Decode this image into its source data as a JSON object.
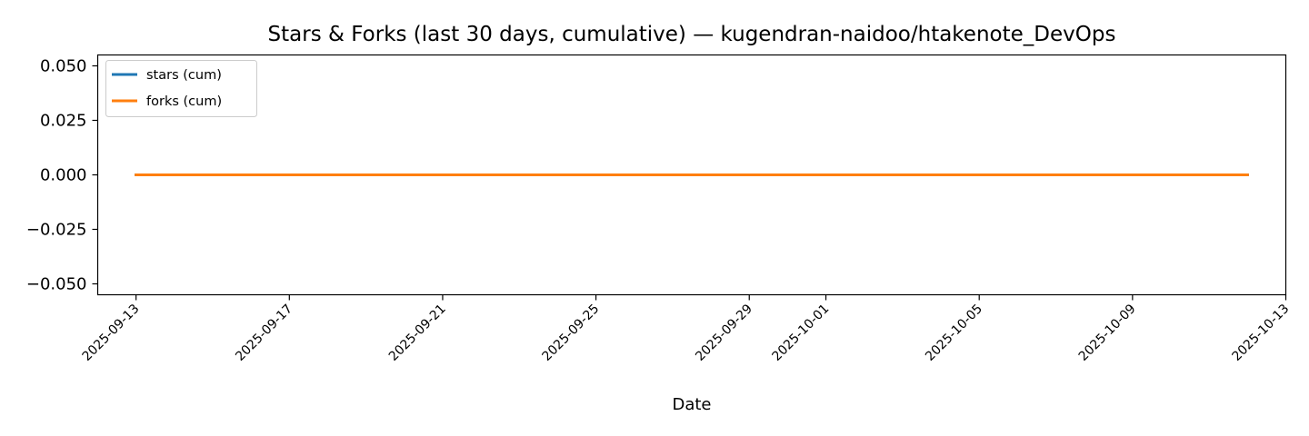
{
  "chart_data": {
    "type": "line",
    "title": "Stars & Forks (last 30 days, cumulative) — kugendran-naidoo/htakenote_DevOps",
    "xlabel": "Date",
    "ylabel": "",
    "x_range": [
      "2025-09-12",
      "2025-10-13"
    ],
    "ylim": [
      -0.055,
      0.055
    ],
    "x_ticks": [
      "2025-09-13",
      "2025-09-17",
      "2025-09-21",
      "2025-09-25",
      "2025-09-29",
      "2025-10-01",
      "2025-10-05",
      "2025-10-09",
      "2025-10-13"
    ],
    "y_ticks": [
      {
        "value": 0.05,
        "label": "0.050"
      },
      {
        "value": 0.025,
        "label": "0.025"
      },
      {
        "value": 0.0,
        "label": "0.000"
      },
      {
        "value": -0.025,
        "label": "−0.025"
      },
      {
        "value": -0.05,
        "label": "−0.050"
      }
    ],
    "grid": false,
    "legend_position": "top-left",
    "series": [
      {
        "name": "stars (cum)",
        "color": "#1f77b4",
        "points": [
          {
            "x": "2025-09-13",
            "y": 0
          },
          {
            "x": "2025-10-12",
            "y": 0
          }
        ]
      },
      {
        "name": "forks (cum)",
        "color": "#ff7f0e",
        "points": [
          {
            "x": "2025-09-13",
            "y": 0
          },
          {
            "x": "2025-10-12",
            "y": 0
          }
        ]
      }
    ]
  }
}
